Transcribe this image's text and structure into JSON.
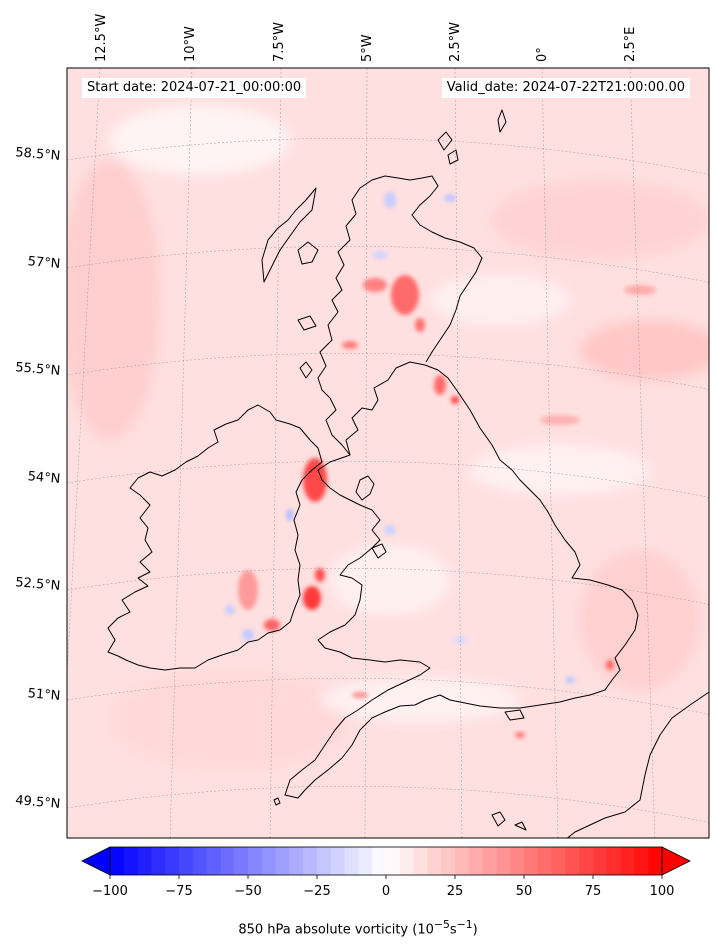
{
  "header": {
    "start_label": "Start date:",
    "start_value": "2024-07-21_00:00:00",
    "valid_label": "Valid_date:",
    "valid_value": "2024-07-22T21:00:00.00"
  },
  "map": {
    "projection": "conic",
    "region": "British Isles",
    "grid": true,
    "coastline_color": "#000000",
    "lon_labels": [
      "12.5°W",
      "10°W",
      "7.5°W",
      "5°W",
      "2.5°W",
      "0°",
      "2.5°E"
    ],
    "lat_labels": [
      "58.5°N",
      "57°N",
      "55.5°N",
      "54°N",
      "52.5°N",
      "51°N",
      "49.5°N"
    ]
  },
  "colorbar": {
    "cmap": "bwr",
    "min": -100,
    "max": 100,
    "extend": "both",
    "ticks": [
      "−100",
      "−75",
      "−50",
      "−25",
      "0",
      "25",
      "50",
      "75",
      "100"
    ],
    "tick_values": [
      -100,
      -75,
      -50,
      -25,
      0,
      25,
      50,
      75,
      100
    ],
    "title": "850 hPa absolute vorticity (10",
    "title_exp1": "−5",
    "title_mid": "s",
    "title_exp2": "−1",
    "title_end": ")",
    "color_negative": "#0000ff",
    "color_zero": "#ffffff",
    "color_positive": "#ff0000"
  }
}
